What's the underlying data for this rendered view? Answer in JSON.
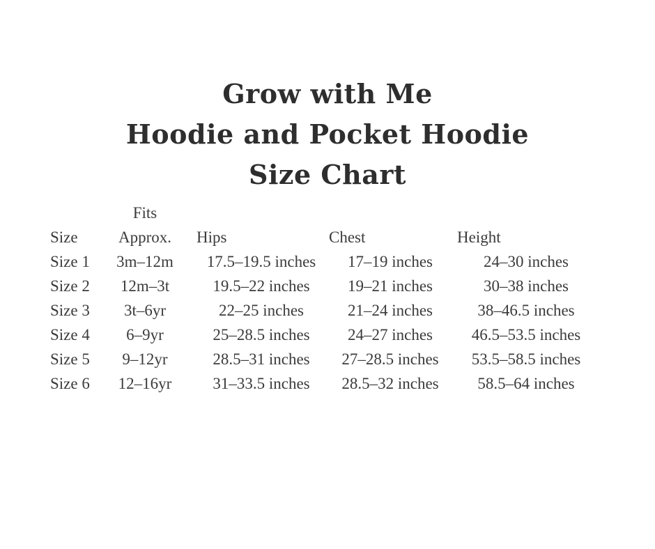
{
  "page": {
    "background_color": "#ffffff",
    "title_color": "#2e2e2e",
    "table_text_color": "#3b3b3b"
  },
  "title": {
    "lines": [
      "Grow with Me",
      "Hoodie and Pocket Hoodie",
      "Size Chart"
    ]
  },
  "size_chart": {
    "header_top": [
      "",
      "Fits",
      "",
      "",
      ""
    ],
    "headers": [
      "Size",
      "Approx.",
      "Hips",
      "Chest",
      "Height"
    ],
    "rows": [
      [
        "Size 1",
        "3m–12m",
        "17.5–19.5 inches",
        "17–19 inches",
        "24–30 inches"
      ],
      [
        "Size 2",
        "12m–3t",
        "19.5–22 inches",
        "19–21 inches",
        "30–38 inches"
      ],
      [
        "Size 3",
        "3t–6yr",
        "22–25 inches",
        "21–24 inches",
        "38–46.5 inches"
      ],
      [
        "Size 4",
        "6–9yr",
        "25–28.5 inches",
        "24–27 inches",
        "46.5–53.5 inches"
      ],
      [
        "Size 5",
        "9–12yr",
        "28.5–31 inches",
        "27–28.5 inches",
        "53.5–58.5 inches"
      ],
      [
        "Size 6",
        "12–16yr",
        "31–33.5 inches",
        "28.5–32 inches",
        "58.5–64 inches"
      ]
    ]
  }
}
